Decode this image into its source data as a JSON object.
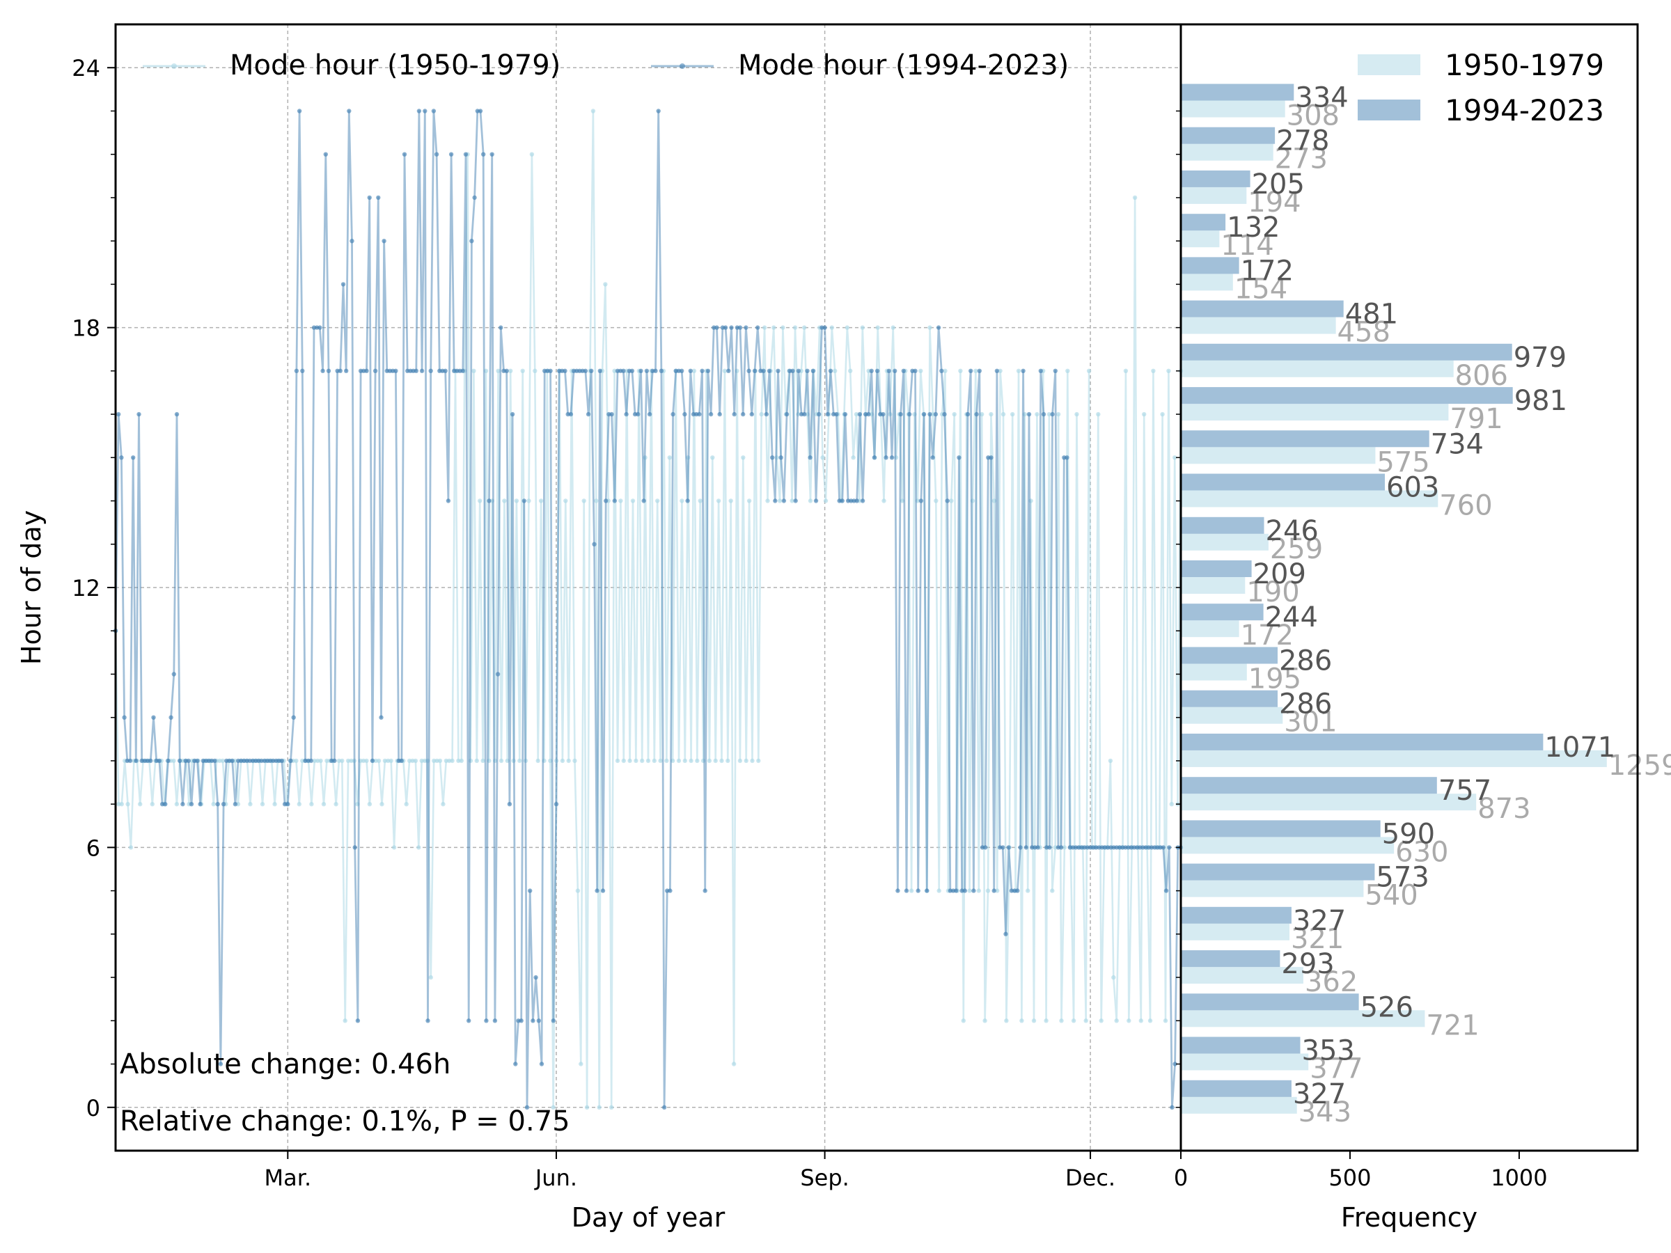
{
  "chart_data": [
    {
      "type": "line",
      "xlabel": "Day of year",
      "ylabel": "Hour of day",
      "x_ticks": [
        {
          "day": 60,
          "label": "Mar."
        },
        {
          "day": 152,
          "label": "Jun."
        },
        {
          "day": 244,
          "label": "Sep."
        },
        {
          "day": 335,
          "label": "Dec."
        }
      ],
      "xlim": [
        1,
        366
      ],
      "ylim": [
        -1,
        25
      ],
      "y_ticks": [
        0,
        6,
        12,
        18,
        24
      ],
      "grid": true,
      "legend_position": "top",
      "series": [
        {
          "name": "Mode hour (1950-1979)",
          "color": "#add8e6",
          "y": [
            11,
            7,
            7,
            8,
            7,
            6,
            8,
            8,
            7,
            8,
            8,
            8,
            7,
            8,
            8,
            8,
            7,
            8,
            8,
            8,
            7,
            8,
            8,
            8,
            7,
            8,
            8,
            8,
            7,
            8,
            8,
            8,
            7,
            8,
            8,
            8,
            7,
            8,
            8,
            8,
            7,
            8,
            8,
            8,
            7,
            8,
            8,
            8,
            7,
            8,
            8,
            8,
            7,
            8,
            8,
            8,
            7,
            8,
            8,
            8,
            7,
            8,
            8,
            8,
            7,
            8,
            8,
            8,
            7,
            8,
            8,
            8,
            7,
            8,
            8,
            2,
            8,
            8,
            8,
            7,
            8,
            8,
            8,
            7,
            8,
            8,
            8,
            7,
            8,
            8,
            8,
            6,
            8,
            8,
            8,
            7,
            8,
            8,
            8,
            6,
            8,
            8,
            8,
            3,
            8,
            8,
            8,
            7,
            8,
            8,
            8,
            17,
            8,
            8,
            17,
            22,
            8,
            17,
            8,
            14,
            8,
            17,
            8,
            14,
            8,
            17,
            8,
            14,
            8,
            17,
            8,
            14,
            8,
            17,
            8,
            14,
            22,
            17,
            8,
            14,
            8,
            17,
            8,
            0,
            8,
            17,
            8,
            14,
            8,
            17,
            8,
            5,
            1,
            14,
            0,
            17,
            23,
            14,
            0,
            17,
            19,
            14,
            0,
            17,
            8,
            14,
            8,
            17,
            8,
            14,
            8,
            17,
            8,
            15,
            8,
            17,
            8,
            14,
            8,
            17,
            8,
            15,
            8,
            17,
            8,
            14,
            8,
            15,
            8,
            17,
            8,
            14,
            8,
            17,
            8,
            15,
            8,
            14,
            8,
            17,
            8,
            14,
            1,
            17,
            8,
            15,
            8,
            14,
            8,
            17,
            8,
            16,
            18,
            14,
            17,
            18,
            15,
            14,
            18,
            16,
            17,
            14,
            18,
            16,
            17,
            18,
            16,
            14,
            17,
            16,
            18,
            15,
            14,
            16,
            18,
            17,
            16,
            14,
            16,
            18,
            17,
            15,
            16,
            14,
            18,
            16,
            17,
            16,
            15,
            18,
            16,
            14,
            17,
            16,
            18,
            15,
            16,
            14,
            17,
            16,
            5,
            16,
            14,
            17,
            16,
            5,
            18,
            16,
            14,
            5,
            16,
            17,
            5,
            14,
            16,
            5,
            17,
            2,
            16,
            5,
            14,
            17,
            5,
            16,
            2,
            5,
            16,
            14,
            5,
            17,
            16,
            2,
            6,
            16,
            5,
            17,
            2,
            16,
            5,
            14,
            2,
            16,
            6,
            17,
            2,
            16,
            5,
            6,
            16,
            2,
            6,
            17,
            6,
            2,
            16,
            6,
            6,
            2,
            17,
            6,
            6,
            16,
            2,
            6,
            6,
            8,
            3,
            2,
            6,
            6,
            17,
            2,
            6,
            21,
            6,
            2,
            16,
            6,
            2,
            17,
            6,
            6,
            16,
            2,
            17,
            7,
            15,
            7,
            17
          ]
        },
        {
          "name": "Mode hour (1994-2023)",
          "color": "#4682b4",
          "y": [
            11,
            16,
            15,
            9,
            8,
            8,
            15,
            8,
            16,
            8,
            8,
            8,
            8,
            9,
            8,
            8,
            7,
            7,
            8,
            9,
            10,
            16,
            8,
            7,
            8,
            8,
            7,
            8,
            8,
            7,
            8,
            8,
            8,
            8,
            8,
            7,
            1,
            7,
            8,
            8,
            8,
            7,
            8,
            8,
            8,
            8,
            8,
            8,
            8,
            8,
            8,
            8,
            8,
            8,
            8,
            8,
            8,
            8,
            7,
            7,
            8,
            9,
            17,
            23,
            17,
            8,
            8,
            8,
            18,
            18,
            18,
            17,
            22,
            17,
            8,
            8,
            17,
            17,
            19,
            17,
            23,
            20,
            6,
            2,
            17,
            17,
            17,
            21,
            8,
            17,
            21,
            9,
            20,
            17,
            17,
            17,
            17,
            8,
            8,
            22,
            17,
            17,
            17,
            17,
            23,
            17,
            23,
            2,
            17,
            23,
            22,
            17,
            17,
            17,
            14,
            22,
            17,
            17,
            17,
            17,
            22,
            2,
            20,
            21,
            23,
            23,
            22,
            2,
            14,
            22,
            2,
            10,
            18,
            17,
            17,
            7,
            16,
            1,
            2,
            2,
            14,
            0,
            5,
            2,
            3,
            2,
            1,
            17,
            17,
            17,
            2,
            7,
            17,
            17,
            17,
            16,
            16,
            17,
            17,
            17,
            17,
            17,
            16,
            17,
            13,
            5,
            17,
            5,
            14,
            16,
            16,
            14,
            17,
            17,
            17,
            16,
            17,
            17,
            16,
            16,
            17,
            14,
            17,
            16,
            17,
            17,
            23,
            17,
            0,
            5,
            5,
            16,
            17,
            17,
            17,
            16,
            14,
            17,
            16,
            16,
            16,
            17,
            5,
            17,
            16,
            18,
            18,
            16,
            18,
            18,
            17,
            18,
            16,
            18,
            18,
            16,
            18,
            17,
            16,
            17,
            18,
            17,
            17,
            16,
            17,
            15,
            14,
            17,
            15,
            14,
            16,
            17,
            17,
            14,
            17,
            16,
            16,
            17,
            15,
            17,
            14,
            16,
            18,
            18,
            16,
            17,
            16,
            16,
            14,
            14,
            16,
            14,
            14,
            14,
            14,
            16,
            14,
            16,
            16,
            17,
            15,
            17,
            16,
            16,
            15,
            17,
            15,
            17,
            5,
            16,
            17,
            5,
            16,
            17,
            17,
            5,
            14,
            16,
            5,
            16,
            15,
            16,
            18,
            17,
            16,
            14,
            5,
            5,
            5,
            15,
            5,
            5,
            16,
            17,
            5,
            16,
            17,
            6,
            6,
            15,
            15,
            5,
            17,
            6,
            6,
            4,
            6,
            5,
            5,
            5,
            6,
            17,
            6,
            16,
            6,
            6,
            6,
            17,
            16,
            6,
            6,
            16,
            17,
            6,
            6,
            15,
            15,
            6,
            6,
            6,
            6,
            6,
            6,
            6,
            6,
            6,
            6,
            6,
            6,
            6,
            6,
            6,
            6,
            6,
            6,
            6,
            6,
            6,
            6,
            6,
            6,
            6,
            6,
            6,
            6,
            6,
            6,
            6,
            6,
            6,
            5,
            6,
            0,
            1,
            6,
            6
          ]
        }
      ],
      "annotations": [
        "Absolute change: 0.46h",
        "Relative change: 0.1%, P = 0.75"
      ]
    },
    {
      "type": "bar",
      "orientation": "horizontal",
      "xlabel": "Frequency",
      "xlim": [
        0,
        1350
      ],
      "x_ticks": [
        0,
        500,
        1000
      ],
      "hours": [
        0,
        1,
        2,
        3,
        4,
        5,
        6,
        7,
        8,
        9,
        10,
        11,
        12,
        13,
        14,
        15,
        16,
        17,
        18,
        19,
        20,
        21,
        22,
        23
      ],
      "legend_position": "top-right",
      "series": [
        {
          "name": "1950-1979",
          "color": "#add8e6",
          "label_color": "#aaaaaa",
          "values": [
            343,
            377,
            721,
            362,
            321,
            540,
            630,
            873,
            1259,
            301,
            195,
            172,
            190,
            259,
            760,
            575,
            791,
            806,
            458,
            154,
            114,
            194,
            273,
            308
          ]
        },
        {
          "name": "1994-2023",
          "color": "#4682b4",
          "label_color": "#555555",
          "values": [
            327,
            353,
            526,
            293,
            327,
            573,
            590,
            757,
            1071,
            286,
            286,
            244,
            209,
            246,
            603,
            734,
            981,
            979,
            481,
            172,
            132,
            205,
            278,
            334
          ]
        }
      ]
    }
  ]
}
